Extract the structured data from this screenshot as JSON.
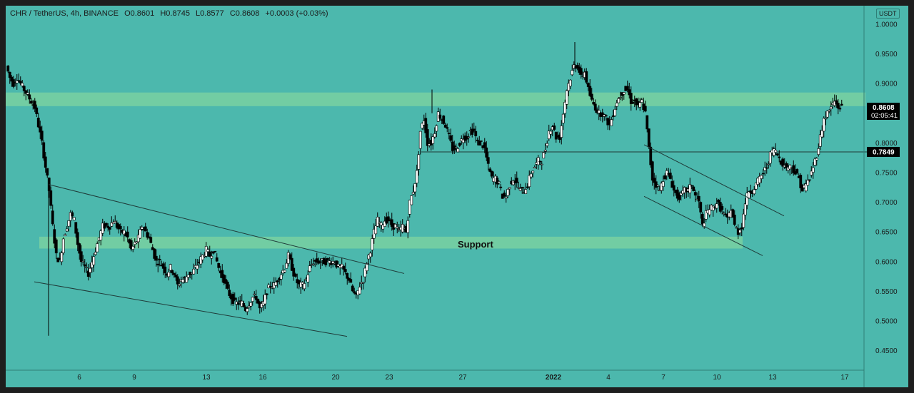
{
  "legend": {
    "symbol": "CHR / TetherUS, 4h, BINANCE",
    "open": "O0.8601",
    "high": "H0.8745",
    "low": "L0.8577",
    "close": "C0.8608",
    "change": "+0.0003 (+0.03%)"
  },
  "currency_badge": "USDT",
  "price_tag": {
    "value": "0.8608",
    "timer": "02:05:41"
  },
  "level_tag": {
    "value": "0.7849"
  },
  "support_label": "Support",
  "colors": {
    "background": "#4cb8ad",
    "zone": "#7fd4a0",
    "candle_up": "#ffffff",
    "candle_down": "#000000",
    "line": "#1f3a38"
  },
  "chart_data": {
    "type": "candlestick",
    "y_ticks": [
      "1.0000",
      "0.9500",
      "0.9000",
      "0.8500",
      "0.8000",
      "0.7500",
      "0.7000",
      "0.6500",
      "0.6000",
      "0.5500",
      "0.5000",
      "0.4500"
    ],
    "ylim": [
      0.42,
      1.01
    ],
    "x_ticks": [
      "6",
      "9",
      "13",
      "16",
      "20",
      "23",
      "27",
      "2022",
      "4",
      "7",
      "10",
      "13",
      "17"
    ],
    "horizontal_level": 0.7849,
    "zones": [
      {
        "low": 0.862,
        "high": 0.885
      },
      {
        "low": 0.622,
        "high": 0.642
      }
    ],
    "close_path": [
      [
        0,
        0.93
      ],
      [
        5,
        0.91
      ],
      [
        10,
        0.9
      ],
      [
        15,
        0.91
      ],
      [
        20,
        0.9
      ],
      [
        25,
        0.89
      ],
      [
        30,
        0.88
      ],
      [
        35,
        0.87
      ],
      [
        40,
        0.86
      ],
      [
        45,
        0.83
      ],
      [
        50,
        0.8
      ],
      [
        55,
        0.76
      ],
      [
        60,
        0.72
      ],
      [
        65,
        0.66
      ],
      [
        70,
        0.61
      ],
      [
        75,
        0.6
      ],
      [
        80,
        0.64
      ],
      [
        85,
        0.66
      ],
      [
        90,
        0.68
      ],
      [
        95,
        0.67
      ],
      [
        100,
        0.63
      ],
      [
        105,
        0.6
      ],
      [
        110,
        0.59
      ],
      [
        115,
        0.58
      ],
      [
        120,
        0.6
      ],
      [
        125,
        0.62
      ],
      [
        130,
        0.64
      ],
      [
        135,
        0.66
      ],
      [
        140,
        0.66
      ],
      [
        145,
        0.66
      ],
      [
        150,
        0.67
      ],
      [
        155,
        0.66
      ],
      [
        160,
        0.65
      ],
      [
        165,
        0.65
      ],
      [
        170,
        0.64
      ],
      [
        175,
        0.62
      ],
      [
        180,
        0.63
      ],
      [
        185,
        0.64
      ],
      [
        190,
        0.66
      ],
      [
        195,
        0.65
      ],
      [
        200,
        0.64
      ],
      [
        205,
        0.62
      ],
      [
        210,
        0.6
      ],
      [
        215,
        0.6
      ],
      [
        220,
        0.59
      ],
      [
        225,
        0.58
      ],
      [
        230,
        0.59
      ],
      [
        235,
        0.58
      ],
      [
        240,
        0.56
      ],
      [
        245,
        0.57
      ],
      [
        250,
        0.57
      ],
      [
        255,
        0.58
      ],
      [
        260,
        0.58
      ],
      [
        265,
        0.59
      ],
      [
        270,
        0.6
      ],
      [
        275,
        0.61
      ],
      [
        280,
        0.62
      ],
      [
        285,
        0.61
      ],
      [
        290,
        0.62
      ],
      [
        295,
        0.6
      ],
      [
        300,
        0.58
      ],
      [
        305,
        0.57
      ],
      [
        310,
        0.55
      ],
      [
        315,
        0.54
      ],
      [
        320,
        0.53
      ],
      [
        325,
        0.53
      ],
      [
        330,
        0.53
      ],
      [
        335,
        0.52
      ],
      [
        340,
        0.53
      ],
      [
        345,
        0.54
      ],
      [
        350,
        0.54
      ],
      [
        355,
        0.52
      ],
      [
        360,
        0.53
      ],
      [
        365,
        0.55
      ],
      [
        370,
        0.56
      ],
      [
        375,
        0.56
      ],
      [
        380,
        0.57
      ],
      [
        385,
        0.58
      ],
      [
        390,
        0.59
      ],
      [
        395,
        0.61
      ],
      [
        400,
        0.59
      ],
      [
        405,
        0.57
      ],
      [
        410,
        0.56
      ],
      [
        415,
        0.56
      ],
      [
        420,
        0.57
      ],
      [
        425,
        0.59
      ],
      [
        430,
        0.6
      ],
      [
        435,
        0.6
      ],
      [
        440,
        0.6
      ],
      [
        445,
        0.6
      ],
      [
        450,
        0.6
      ],
      [
        455,
        0.6
      ],
      [
        460,
        0.6
      ],
      [
        465,
        0.59
      ],
      [
        470,
        0.59
      ],
      [
        475,
        0.58
      ],
      [
        480,
        0.57
      ],
      [
        485,
        0.55
      ],
      [
        490,
        0.54
      ],
      [
        495,
        0.56
      ],
      [
        500,
        0.57
      ],
      [
        505,
        0.6
      ],
      [
        510,
        0.62
      ],
      [
        515,
        0.65
      ],
      [
        520,
        0.67
      ],
      [
        525,
        0.66
      ],
      [
        530,
        0.67
      ],
      [
        535,
        0.67
      ],
      [
        540,
        0.66
      ],
      [
        545,
        0.66
      ],
      [
        550,
        0.65
      ],
      [
        555,
        0.66
      ],
      [
        560,
        0.65
      ],
      [
        565,
        0.7
      ],
      [
        570,
        0.72
      ],
      [
        575,
        0.75
      ],
      [
        580,
        0.82
      ],
      [
        585,
        0.84
      ],
      [
        590,
        0.8
      ],
      [
        595,
        0.8
      ],
      [
        600,
        0.82
      ],
      [
        605,
        0.85
      ],
      [
        610,
        0.84
      ],
      [
        615,
        0.83
      ],
      [
        620,
        0.81
      ],
      [
        625,
        0.79
      ],
      [
        630,
        0.79
      ],
      [
        635,
        0.8
      ],
      [
        640,
        0.81
      ],
      [
        645,
        0.81
      ],
      [
        650,
        0.82
      ],
      [
        655,
        0.82
      ],
      [
        660,
        0.8
      ],
      [
        665,
        0.8
      ],
      [
        670,
        0.79
      ],
      [
        675,
        0.76
      ],
      [
        680,
        0.74
      ],
      [
        685,
        0.74
      ],
      [
        690,
        0.73
      ],
      [
        695,
        0.71
      ],
      [
        700,
        0.71
      ],
      [
        705,
        0.73
      ],
      [
        710,
        0.74
      ],
      [
        715,
        0.73
      ],
      [
        720,
        0.72
      ],
      [
        725,
        0.72
      ],
      [
        730,
        0.73
      ],
      [
        735,
        0.75
      ],
      [
        740,
        0.76
      ],
      [
        745,
        0.77
      ],
      [
        750,
        0.77
      ],
      [
        755,
        0.79
      ],
      [
        760,
        0.82
      ],
      [
        765,
        0.83
      ],
      [
        770,
        0.81
      ],
      [
        775,
        0.81
      ],
      [
        780,
        0.85
      ],
      [
        785,
        0.89
      ],
      [
        790,
        0.91
      ],
      [
        795,
        0.93
      ],
      [
        800,
        0.93
      ],
      [
        805,
        0.91
      ],
      [
        810,
        0.92
      ],
      [
        815,
        0.89
      ],
      [
        820,
        0.87
      ],
      [
        825,
        0.86
      ],
      [
        830,
        0.85
      ],
      [
        835,
        0.85
      ],
      [
        840,
        0.84
      ],
      [
        845,
        0.83
      ],
      [
        850,
        0.85
      ],
      [
        855,
        0.87
      ],
      [
        860,
        0.88
      ],
      [
        865,
        0.89
      ],
      [
        870,
        0.89
      ],
      [
        875,
        0.87
      ],
      [
        880,
        0.87
      ],
      [
        885,
        0.86
      ],
      [
        890,
        0.87
      ],
      [
        895,
        0.85
      ],
      [
        900,
        0.79
      ],
      [
        905,
        0.74
      ],
      [
        910,
        0.73
      ],
      [
        915,
        0.72
      ],
      [
        920,
        0.74
      ],
      [
        925,
        0.75
      ],
      [
        930,
        0.74
      ],
      [
        935,
        0.72
      ],
      [
        940,
        0.71
      ],
      [
        945,
        0.71
      ],
      [
        950,
        0.72
      ],
      [
        955,
        0.72
      ],
      [
        960,
        0.73
      ],
      [
        965,
        0.71
      ],
      [
        970,
        0.7
      ],
      [
        975,
        0.66
      ],
      [
        980,
        0.68
      ],
      [
        985,
        0.69
      ],
      [
        990,
        0.69
      ],
      [
        995,
        0.7
      ],
      [
        1000,
        0.69
      ],
      [
        1005,
        0.68
      ],
      [
        1010,
        0.67
      ],
      [
        1015,
        0.69
      ],
      [
        1020,
        0.66
      ],
      [
        1025,
        0.65
      ],
      [
        1030,
        0.66
      ],
      [
        1035,
        0.7
      ],
      [
        1040,
        0.72
      ],
      [
        1045,
        0.72
      ],
      [
        1050,
        0.73
      ],
      [
        1055,
        0.74
      ],
      [
        1060,
        0.75
      ],
      [
        1065,
        0.76
      ],
      [
        1070,
        0.78
      ],
      [
        1075,
        0.79
      ],
      [
        1080,
        0.78
      ],
      [
        1085,
        0.77
      ],
      [
        1090,
        0.76
      ],
      [
        1095,
        0.76
      ],
      [
        1100,
        0.76
      ],
      [
        1105,
        0.75
      ],
      [
        1110,
        0.74
      ],
      [
        1115,
        0.72
      ],
      [
        1120,
        0.73
      ],
      [
        1125,
        0.74
      ],
      [
        1130,
        0.76
      ],
      [
        1135,
        0.78
      ],
      [
        1140,
        0.81
      ],
      [
        1145,
        0.84
      ],
      [
        1150,
        0.85
      ],
      [
        1155,
        0.86
      ],
      [
        1160,
        0.87
      ],
      [
        1165,
        0.86
      ],
      [
        1170,
        0.86
      ]
    ],
    "trendlines": [
      {
        "x1": 68,
        "y1": 0.73,
        "x2": 566,
        "y2": 0.58
      },
      {
        "x1": 48,
        "y1": 0.566,
        "x2": 486,
        "y2": 0.474
      },
      {
        "x1": 902,
        "y1": 0.797,
        "x2": 1098,
        "y2": 0.677
      },
      {
        "x1": 902,
        "y1": 0.71,
        "x2": 1068,
        "y2": 0.61
      }
    ]
  }
}
